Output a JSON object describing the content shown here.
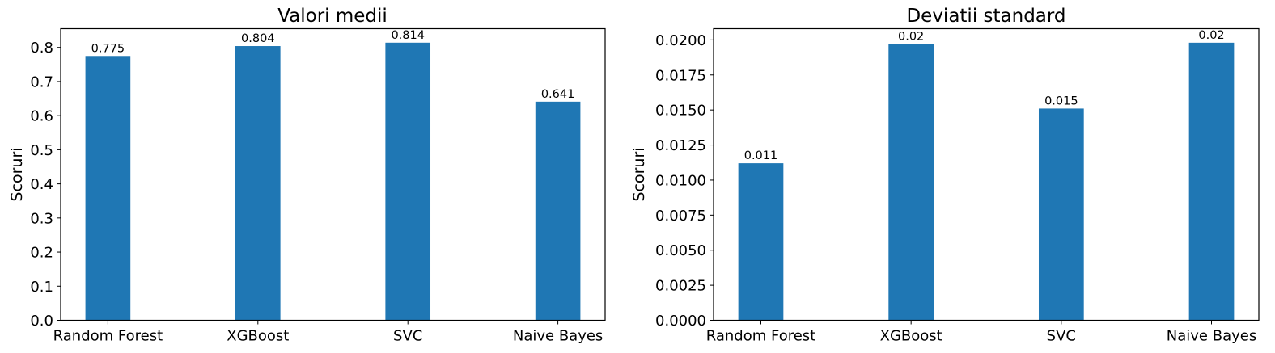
{
  "chart_data": [
    {
      "type": "bar",
      "title": "Valori medii",
      "xlabel": "",
      "ylabel": "Scoruri",
      "categories": [
        "Random Forest",
        "XGBoost",
        "SVC",
        "Naive Bayes"
      ],
      "values": [
        0.775,
        0.804,
        0.814,
        0.641
      ],
      "value_labels": [
        "0.775",
        "0.804",
        "0.814",
        "0.641"
      ],
      "yticks": [
        0.0,
        0.1,
        0.2,
        0.3,
        0.4,
        0.5,
        0.6,
        0.7,
        0.8
      ],
      "ytick_labels": [
        "0.0",
        "0.1",
        "0.2",
        "0.3",
        "0.4",
        "0.5",
        "0.6",
        "0.7",
        "0.8"
      ],
      "ylim": [
        0,
        0.855
      ],
      "grid": false,
      "bar_color": "#1f77b4"
    },
    {
      "type": "bar",
      "title": "Deviatii standard",
      "xlabel": "",
      "ylabel": "Scoruri",
      "categories": [
        "Random Forest",
        "XGBoost",
        "SVC",
        "Naive Bayes"
      ],
      "values": [
        0.0112,
        0.0197,
        0.0151,
        0.0198
      ],
      "value_labels": [
        "0.011",
        "0.02",
        "0.015",
        "0.02"
      ],
      "yticks": [
        0.0,
        0.0025,
        0.005,
        0.0075,
        0.01,
        0.0125,
        0.015,
        0.0175,
        0.02
      ],
      "ytick_labels": [
        "0.0000",
        "0.0025",
        "0.0050",
        "0.0075",
        "0.0100",
        "0.0125",
        "0.0150",
        "0.0175",
        "0.0200"
      ],
      "ylim": [
        0,
        0.0208
      ],
      "grid": false,
      "bar_color": "#1f77b4"
    }
  ]
}
